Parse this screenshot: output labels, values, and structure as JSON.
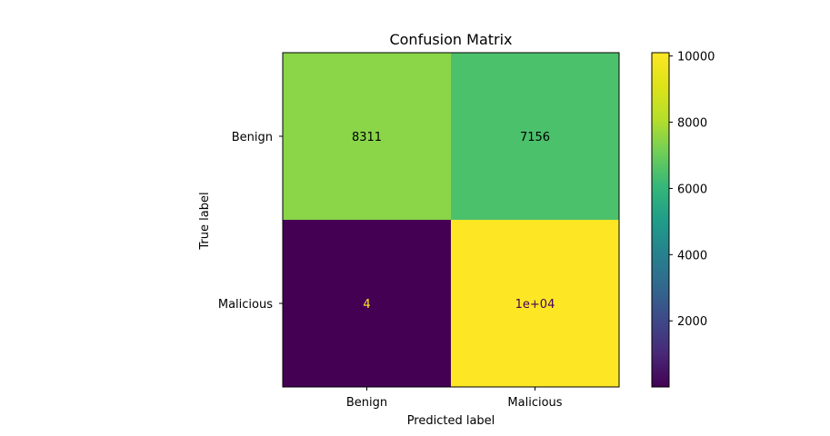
{
  "chart_data": {
    "type": "heatmap",
    "title": "Confusion Matrix",
    "xlabel": "Predicted label",
    "ylabel": "True label",
    "x_categories": [
      "Benign",
      "Malicious"
    ],
    "y_categories": [
      "Benign",
      "Malicious"
    ],
    "values": [
      [
        8311,
        7156
      ],
      [
        4,
        10100
      ]
    ],
    "cell_labels": [
      [
        "8311",
        "7156"
      ],
      [
        "4",
        "1e+04"
      ]
    ],
    "cell_colors": [
      [
        "#8ad548",
        "#4bc16c"
      ],
      [
        "#440154",
        "#fde725"
      ]
    ],
    "cell_text_colors": [
      [
        "#000000",
        "#000000"
      ],
      [
        "#fde725",
        "#440154"
      ]
    ],
    "colormap": "viridis",
    "color_range": [
      4,
      10100
    ],
    "colorbar_ticks": [
      2000,
      4000,
      6000,
      8000,
      10000
    ],
    "colorbar_tick_labels": [
      "2000",
      "4000",
      "6000",
      "8000",
      "10000"
    ]
  }
}
